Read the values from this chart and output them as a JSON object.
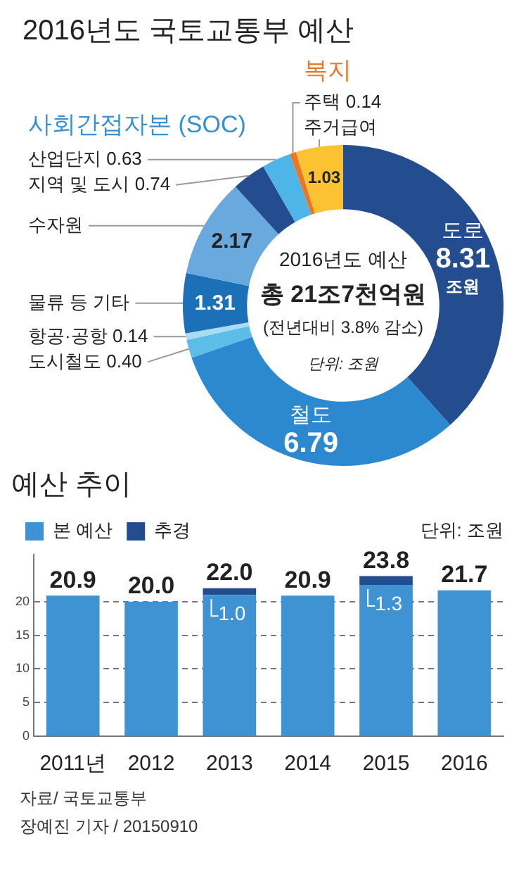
{
  "chart_data": [
    {
      "type": "donut",
      "title": "2016년도 국토교통부 예산",
      "categories": [
        "도로",
        "철도",
        "도시철도",
        "항공·공항",
        "물류 등 기타",
        "수자원",
        "지역 및 도시",
        "산업단지",
        "주택",
        "주거급여"
      ],
      "values": [
        8.31,
        6.79,
        0.4,
        0.14,
        1.31,
        2.17,
        0.74,
        0.63,
        0.14,
        1.03
      ],
      "colors": [
        "#234d8e",
        "#2c88cf",
        "#5cbde9",
        "#a9dbf2",
        "#1b70b8",
        "#6aa9de",
        "#234d8e",
        "#4db5e8",
        "#e8772a",
        "#fbc232"
      ],
      "value_labels": [
        "8.31 조원",
        "6.79",
        "0.40",
        "0.14",
        "1.31",
        "2.17",
        "0.74",
        "0.63",
        "0.14",
        "1.03"
      ],
      "annotations": [
        "사회간접자본 (SOC)",
        "복지",
        "2016년도 예산",
        "총 21조7천억원",
        "(전년대비 3.8% 감소)",
        "단위: 조원"
      ]
    },
    {
      "type": "bar",
      "title": "예산 추이",
      "categories": [
        "2011년",
        "2012",
        "2013",
        "2014",
        "2015",
        "2016"
      ],
      "series": [
        {
          "name": "본 예산",
          "color": "#3f93d3",
          "values": [
            20.9,
            20.0,
            21.0,
            20.9,
            22.5,
            21.7
          ]
        },
        {
          "name": "추경",
          "color": "#234d8e",
          "values": [
            null,
            null,
            1.0,
            null,
            1.3,
            null
          ],
          "value_labels": [
            null,
            null,
            "1.0",
            null,
            "1.3",
            null
          ]
        }
      ],
      "stacked": true,
      "ylim": [
        0,
        27
      ],
      "yticks": [
        0,
        5,
        10,
        15,
        20
      ],
      "grid": "y",
      "legend": "top left",
      "totals": [
        "20.9",
        "20.0",
        "22.0",
        "20.9",
        "23.8",
        "21.7"
      ],
      "annotations": [
        "단위: 조원",
        "자료/ 국토교통부",
        "장예진 기자 / 20150910"
      ]
    }
  ]
}
